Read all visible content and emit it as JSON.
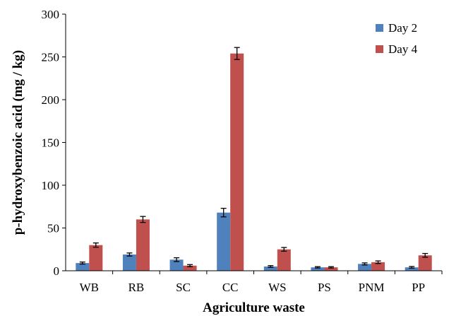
{
  "chart_data": {
    "type": "bar",
    "title": "",
    "xlabel": "Agriculture waste",
    "ylabel": "p-hydroxybenzoic acid (mg / kg)",
    "ylim": [
      0,
      300
    ],
    "yticks": [
      0,
      50,
      100,
      150,
      200,
      250,
      300
    ],
    "grid": false,
    "legend": "top-right",
    "categories": [
      "WB",
      "RB",
      "SC",
      "CC",
      "WS",
      "PS",
      "PNM",
      "PP"
    ],
    "series": [
      {
        "name": "Day 2",
        "color": "#4f81bd",
        "values": [
          9,
          19,
          13,
          68,
          5,
          4,
          8,
          4
        ],
        "errors": [
          1.2,
          1.8,
          2.2,
          5,
          1,
          0.8,
          1.2,
          1
        ]
      },
      {
        "name": "Day 4",
        "color": "#c0504d",
        "values": [
          30,
          60,
          6,
          254,
          25,
          4,
          10,
          18
        ],
        "errors": [
          2.5,
          3.5,
          1.2,
          7,
          2.2,
          0.8,
          1.5,
          2.2
        ]
      }
    ]
  }
}
